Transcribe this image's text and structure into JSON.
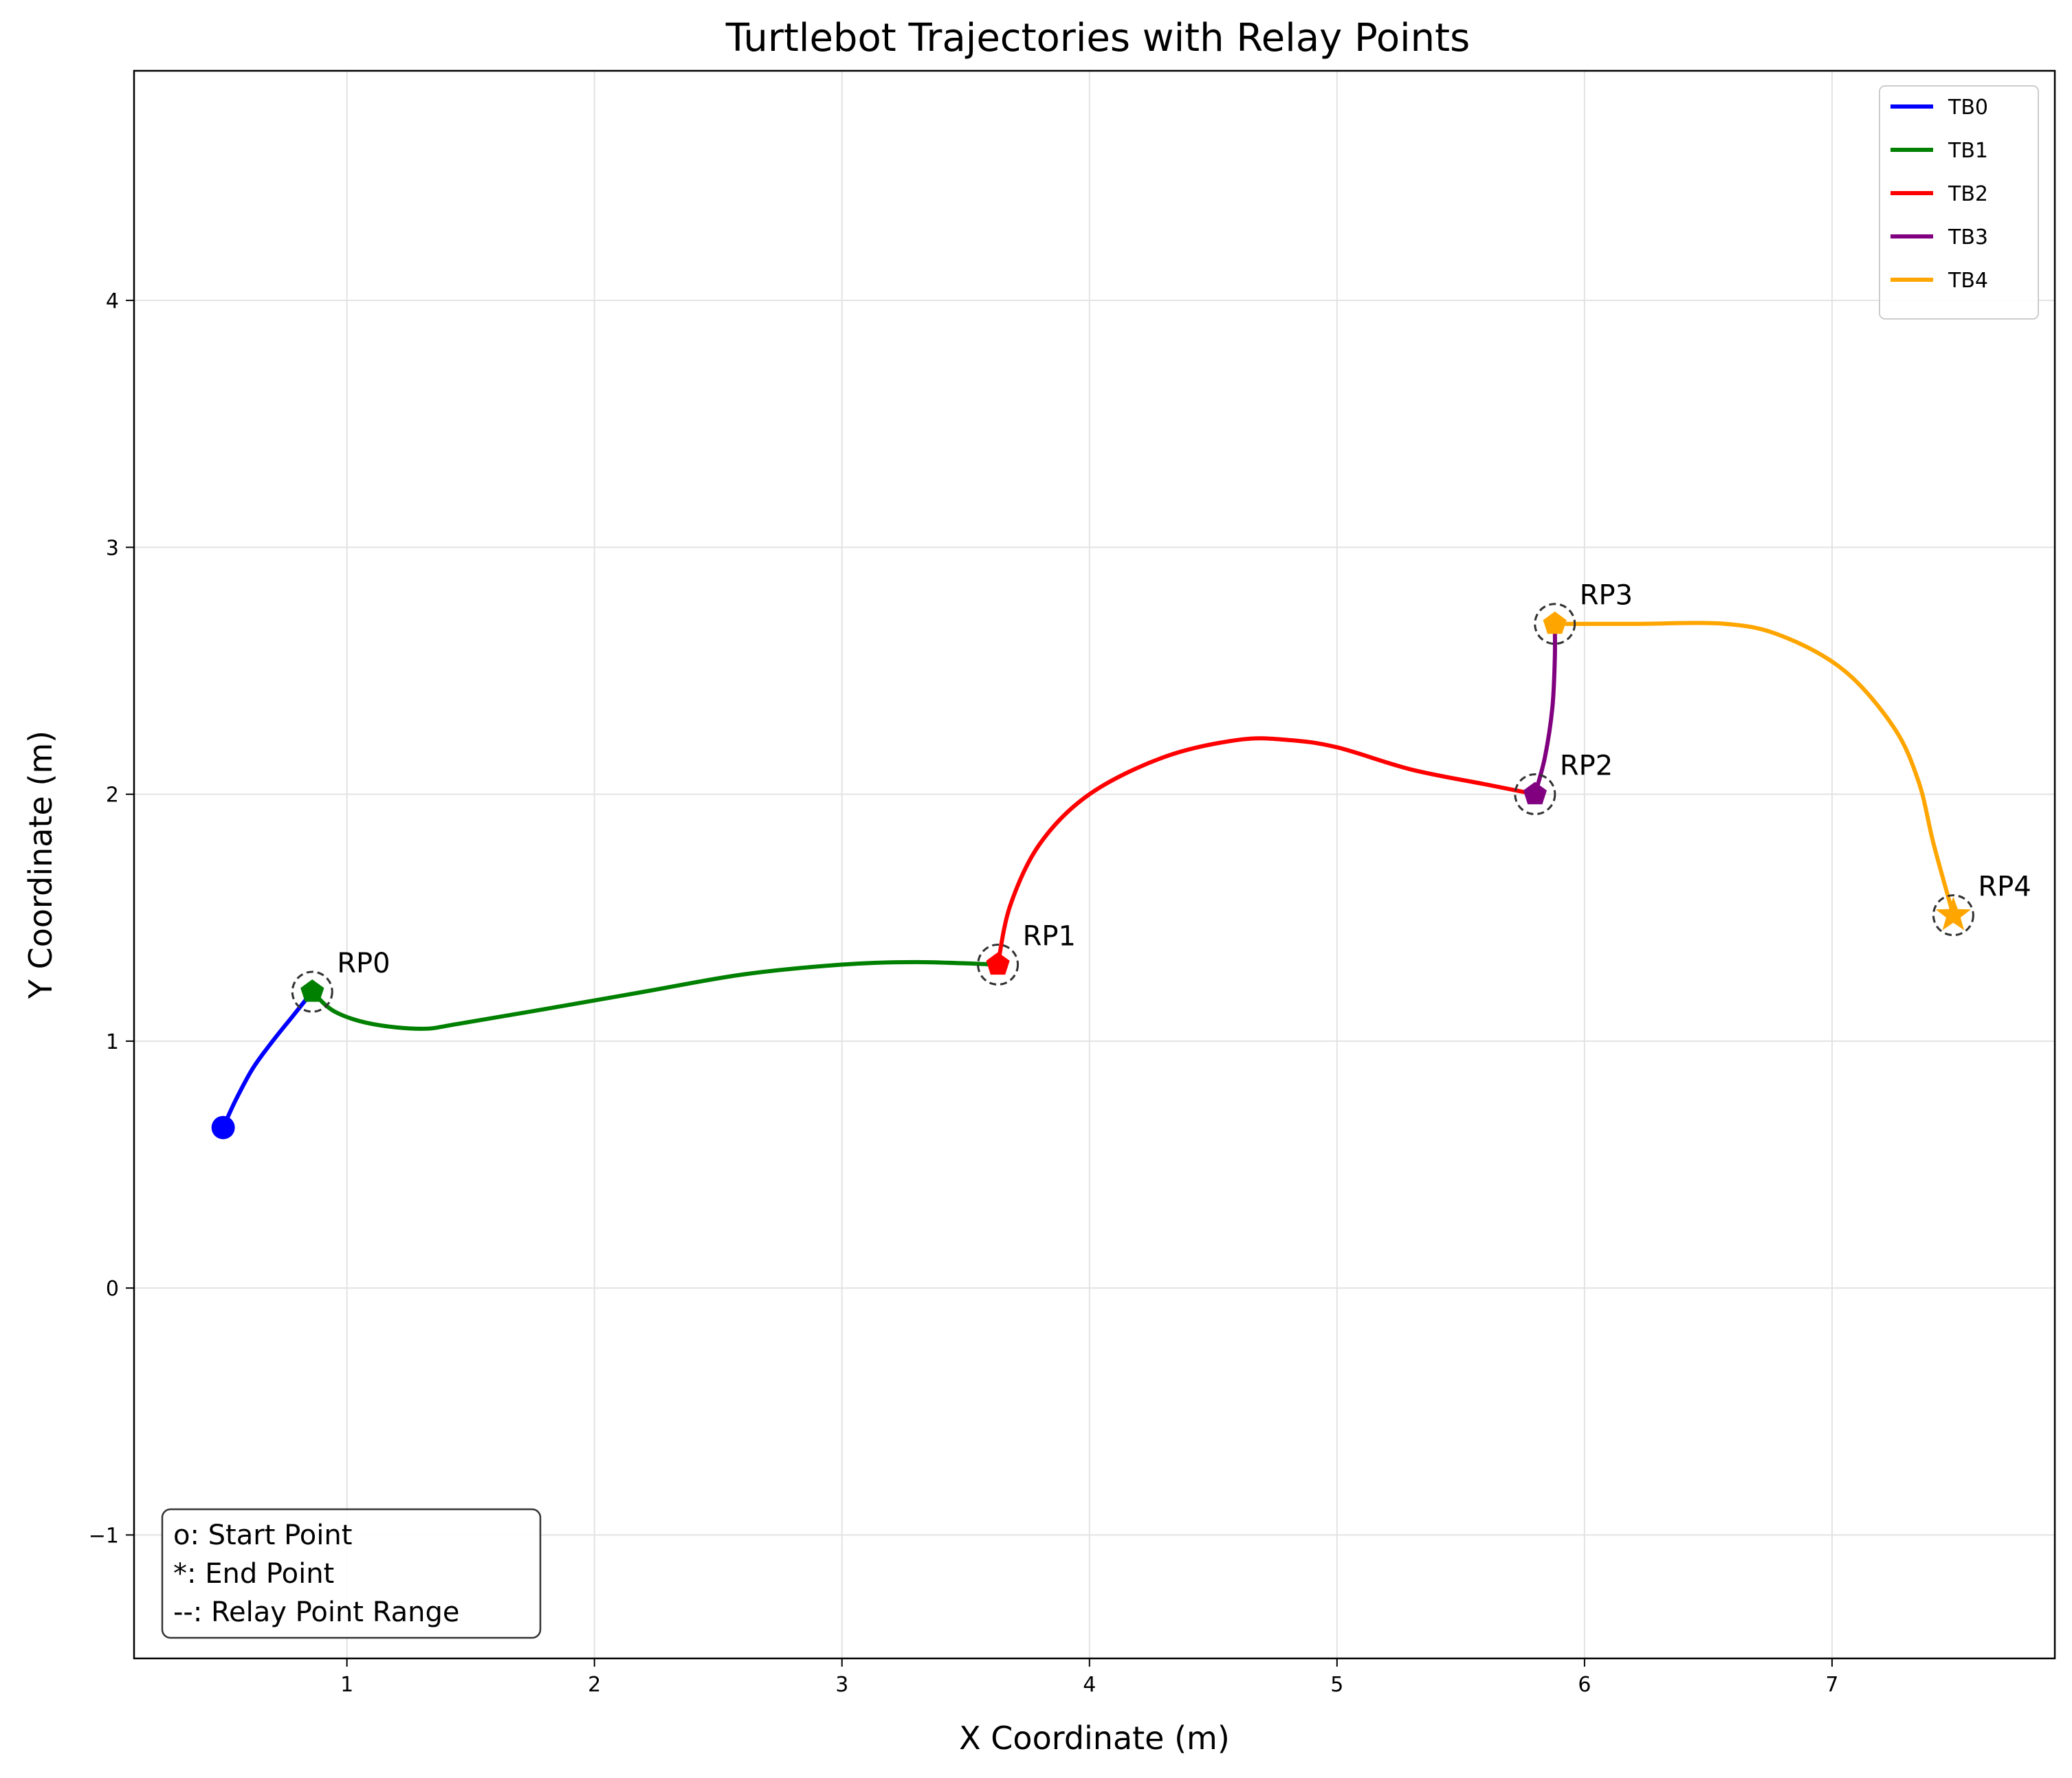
{
  "chart_data": {
    "type": "line",
    "title": "Turtlebot Trajectories with Relay Points",
    "xlabel": "X Coordinate (m)",
    "ylabel": "Y Coordinate (m)",
    "xlim": [
      0.14,
      7.9
    ],
    "ylim": [
      -1.5,
      4.93
    ],
    "x_ticks": [
      1,
      2,
      3,
      4,
      5,
      6,
      7
    ],
    "y_ticks": [
      -1,
      0,
      1,
      2,
      3,
      4
    ],
    "x_tick_labels": [
      "1",
      "2",
      "3",
      "4",
      "5",
      "6",
      "7"
    ],
    "y_tick_labels": [
      "−1",
      "0",
      "1",
      "2",
      "3",
      "4"
    ],
    "grid": true,
    "legend_position": "top-right",
    "series": [
      {
        "name": "TB0",
        "color": "#0000ff",
        "x": [
          0.5,
          0.55,
          0.62,
          0.7,
          0.78,
          0.86
        ],
        "y": [
          0.65,
          0.76,
          0.89,
          1.0,
          1.1,
          1.2
        ]
      },
      {
        "name": "TB1",
        "color": "#008000",
        "x": [
          0.86,
          0.95,
          1.1,
          1.3,
          1.45,
          1.8,
          2.2,
          2.6,
          3.0,
          3.3,
          3.63
        ],
        "y": [
          1.2,
          1.12,
          1.07,
          1.05,
          1.07,
          1.13,
          1.2,
          1.27,
          1.31,
          1.32,
          1.31
        ]
      },
      {
        "name": "TB2",
        "color": "#ff0000",
        "x": [
          3.63,
          3.68,
          3.8,
          4.0,
          4.3,
          4.6,
          4.8,
          5.0,
          5.3,
          5.6,
          5.8
        ],
        "y": [
          1.31,
          1.55,
          1.8,
          2.0,
          2.15,
          2.22,
          2.22,
          2.19,
          2.1,
          2.04,
          2.0
        ]
      },
      {
        "name": "TB3",
        "color": "#800080",
        "x": [
          5.8,
          5.84,
          5.87,
          5.88,
          5.88
        ],
        "y": [
          2.0,
          2.15,
          2.35,
          2.55,
          2.69
        ]
      },
      {
        "name": "TB4",
        "color": "#ffa500",
        "x": [
          5.88,
          6.2,
          6.57,
          6.8,
          7.05,
          7.25,
          7.35,
          7.41,
          7.49
        ],
        "y": [
          2.69,
          2.69,
          2.69,
          2.64,
          2.5,
          2.27,
          2.05,
          1.8,
          1.51
        ]
      }
    ],
    "start_point": {
      "x": 0.5,
      "y": 0.65,
      "color": "#0000ff"
    },
    "end_point": {
      "x": 7.49,
      "y": 1.51,
      "color": "#ffa500"
    },
    "relay_points": [
      {
        "label": "RP0",
        "x": 0.86,
        "y": 1.2,
        "color": "#008000"
      },
      {
        "label": "RP1",
        "x": 3.63,
        "y": 1.31,
        "color": "#ff0000"
      },
      {
        "label": "RP2",
        "x": 5.8,
        "y": 2.0,
        "color": "#800080"
      },
      {
        "label": "RP3",
        "x": 5.88,
        "y": 2.69,
        "color": "#ffa500"
      },
      {
        "label": "RP4",
        "x": 7.49,
        "y": 1.51,
        "color": "#ffa500"
      }
    ],
    "annotation_lines": [
      "o: Start Point",
      "*: End Point",
      "--: Relay Point Range"
    ]
  }
}
